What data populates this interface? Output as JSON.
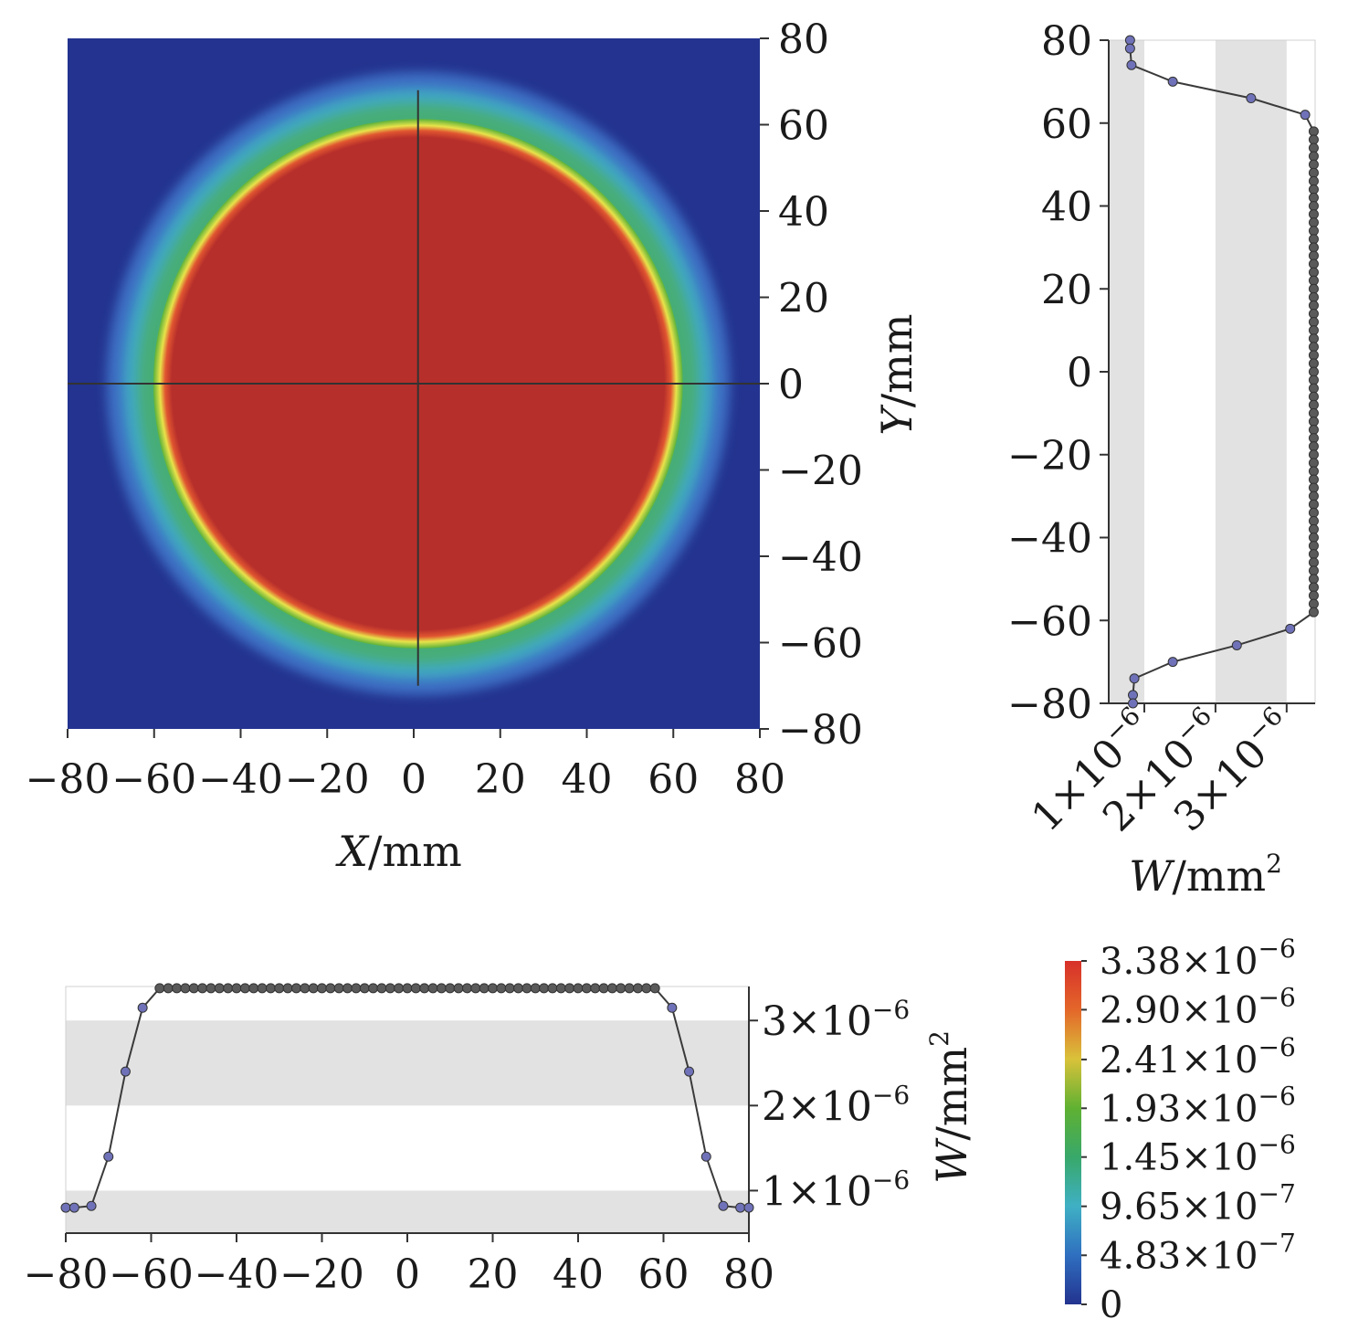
{
  "chart_data": [
    {
      "type": "heatmap",
      "xlabel_var": "X",
      "xlabel_unit": "/mm",
      "ylabel_var": "Y",
      "ylabel_unit": "/mm",
      "xlim": [
        -80,
        80
      ],
      "ylim": [
        -80,
        80
      ],
      "x_ticks": [
        "−80",
        "−60",
        "−40",
        "−20",
        "0",
        "20",
        "40",
        "60",
        "80"
      ],
      "y_ticks": [
        "80",
        "60",
        "40",
        "20",
        "0",
        "−20",
        "−40",
        "−60",
        "−80"
      ],
      "field": {
        "shape": "circular plateau",
        "plateau_radius_mm": 60,
        "plateau_value": 3.38e-06,
        "background_value": 4e-07,
        "center_x_mm": 1,
        "center_y_mm": 0
      },
      "crosshair": {
        "x": 1,
        "y": 0
      }
    },
    {
      "type": "line",
      "orientation": "vertical profile",
      "xlabel_var": "W",
      "xlabel_unit": "/mm",
      "xlabel_sup": "2",
      "ylim": [
        -80,
        80
      ],
      "xlim": [
        5e-07,
        3.4e-06
      ],
      "y_ticks": [
        "80",
        "60",
        "40",
        "20",
        "0",
        "−20",
        "−40",
        "−60",
        "−80"
      ],
      "x_ticks": [
        {
          "base": "1×10",
          "exp": "−6",
          "value": 1e-06
        },
        {
          "base": "2×10",
          "exp": "−6",
          "value": 2e-06
        },
        {
          "base": "3×10",
          "exp": "−6",
          "value": 3e-06
        }
      ],
      "series": [
        {
          "y": [
            80,
            78,
            74,
            70,
            66,
            62,
            58,
            56,
            54,
            52,
            50,
            48,
            46,
            44,
            42,
            40,
            38,
            36,
            34,
            32,
            30,
            28,
            26,
            24,
            22,
            20,
            18,
            16,
            14,
            12,
            10,
            8,
            6,
            4,
            2,
            0,
            -2,
            -4,
            -6,
            -8,
            -10,
            -12,
            -14,
            -16,
            -18,
            -20,
            -22,
            -24,
            -26,
            -28,
            -30,
            -32,
            -34,
            -36,
            -38,
            -40,
            -42,
            -44,
            -46,
            -48,
            -50,
            -52,
            -54,
            -56,
            -58,
            -62,
            -66,
            -70,
            -74,
            -78,
            -80
          ],
          "values": [
            8e-07,
            8e-07,
            8.2e-07,
            1.4e-06,
            2.5e-06,
            3.26e-06,
            3.38e-06,
            3.38e-06,
            3.38e-06,
            3.38e-06,
            3.38e-06,
            3.38e-06,
            3.38e-06,
            3.38e-06,
            3.38e-06,
            3.38e-06,
            3.38e-06,
            3.38e-06,
            3.38e-06,
            3.38e-06,
            3.38e-06,
            3.38e-06,
            3.38e-06,
            3.38e-06,
            3.38e-06,
            3.38e-06,
            3.38e-06,
            3.38e-06,
            3.38e-06,
            3.38e-06,
            3.38e-06,
            3.38e-06,
            3.38e-06,
            3.38e-06,
            3.38e-06,
            3.38e-06,
            3.38e-06,
            3.38e-06,
            3.38e-06,
            3.38e-06,
            3.38e-06,
            3.38e-06,
            3.38e-06,
            3.38e-06,
            3.38e-06,
            3.38e-06,
            3.38e-06,
            3.38e-06,
            3.38e-06,
            3.38e-06,
            3.38e-06,
            3.38e-06,
            3.38e-06,
            3.38e-06,
            3.38e-06,
            3.38e-06,
            3.38e-06,
            3.38e-06,
            3.38e-06,
            3.38e-06,
            3.38e-06,
            3.38e-06,
            3.38e-06,
            3.38e-06,
            3.38e-06,
            3.05e-06,
            2.3e-06,
            1.4e-06,
            8.6e-07,
            8.4e-07,
            8.4e-07
          ]
        }
      ],
      "bands": [
        [
          5e-07,
          1e-06
        ],
        [
          2e-06,
          3e-06
        ]
      ]
    },
    {
      "type": "line",
      "orientation": "horizontal profile",
      "ylabel_var": "W",
      "ylabel_unit": "/mm",
      "ylabel_sup": "2",
      "xlim": [
        -80,
        80
      ],
      "ylim": [
        5e-07,
        3.4e-06
      ],
      "x_ticks": [
        "−80",
        "−60",
        "−40",
        "−20",
        "0",
        "20",
        "40",
        "60",
        "80"
      ],
      "y_ticks": [
        {
          "base": "1×10",
          "exp": "−6",
          "value": 1e-06
        },
        {
          "base": "2×10",
          "exp": "−6",
          "value": 2e-06
        },
        {
          "base": "3×10",
          "exp": "−6",
          "value": 3e-06
        }
      ],
      "series": [
        {
          "x": [
            -80,
            -78,
            -74,
            -70,
            -66,
            -62,
            -58,
            -56,
            -54,
            -52,
            -50,
            -48,
            -46,
            -44,
            -42,
            -40,
            -38,
            -36,
            -34,
            -32,
            -30,
            -28,
            -26,
            -24,
            -22,
            -20,
            -18,
            -16,
            -14,
            -12,
            -10,
            -8,
            -6,
            -4,
            -2,
            0,
            2,
            4,
            6,
            8,
            10,
            12,
            14,
            16,
            18,
            20,
            22,
            24,
            26,
            28,
            30,
            32,
            34,
            36,
            38,
            40,
            42,
            44,
            46,
            48,
            50,
            52,
            54,
            56,
            58,
            62,
            66,
            70,
            74,
            78,
            80
          ],
          "values": [
            8e-07,
            8e-07,
            8.2e-07,
            1.4e-06,
            2.4e-06,
            3.15e-06,
            3.38e-06,
            3.38e-06,
            3.38e-06,
            3.38e-06,
            3.38e-06,
            3.38e-06,
            3.38e-06,
            3.38e-06,
            3.38e-06,
            3.38e-06,
            3.38e-06,
            3.38e-06,
            3.38e-06,
            3.38e-06,
            3.38e-06,
            3.38e-06,
            3.38e-06,
            3.38e-06,
            3.38e-06,
            3.38e-06,
            3.38e-06,
            3.38e-06,
            3.38e-06,
            3.38e-06,
            3.38e-06,
            3.38e-06,
            3.38e-06,
            3.38e-06,
            3.38e-06,
            3.38e-06,
            3.38e-06,
            3.38e-06,
            3.38e-06,
            3.38e-06,
            3.38e-06,
            3.38e-06,
            3.38e-06,
            3.38e-06,
            3.38e-06,
            3.38e-06,
            3.38e-06,
            3.38e-06,
            3.38e-06,
            3.38e-06,
            3.38e-06,
            3.38e-06,
            3.38e-06,
            3.38e-06,
            3.38e-06,
            3.38e-06,
            3.38e-06,
            3.38e-06,
            3.38e-06,
            3.38e-06,
            3.38e-06,
            3.38e-06,
            3.38e-06,
            3.38e-06,
            3.38e-06,
            3.15e-06,
            2.4e-06,
            1.4e-06,
            8.2e-07,
            8e-07,
            8e-07
          ]
        }
      ],
      "bands": [
        [
          5e-07,
          1e-06
        ],
        [
          2e-06,
          3e-06
        ]
      ]
    },
    {
      "type": "colorbar",
      "min": 0,
      "max": 3.38e-06,
      "labels": [
        {
          "base": "3.38×10",
          "exp": "−6",
          "value": 3.38e-06
        },
        {
          "base": "2.90×10",
          "exp": "−6",
          "value": 2.9e-06
        },
        {
          "base": "2.41×10",
          "exp": "−6",
          "value": 2.41e-06
        },
        {
          "base": "1.93×10",
          "exp": "−6",
          "value": 1.93e-06
        },
        {
          "base": "1.45×10",
          "exp": "−6",
          "value": 1.45e-06
        },
        {
          "base": "9.65×10",
          "exp": "−7",
          "value": 9.65e-07
        },
        {
          "base": "4.83×10",
          "exp": "−7",
          "value": 4.83e-07
        },
        {
          "base": "0",
          "exp": "",
          "value": 0
        }
      ],
      "colors": [
        "#d7302a",
        "#e4672a",
        "#d9c23a",
        "#5fb132",
        "#38a86a",
        "#3fb0c4",
        "#2f6fc0",
        "#23338f"
      ]
    }
  ]
}
